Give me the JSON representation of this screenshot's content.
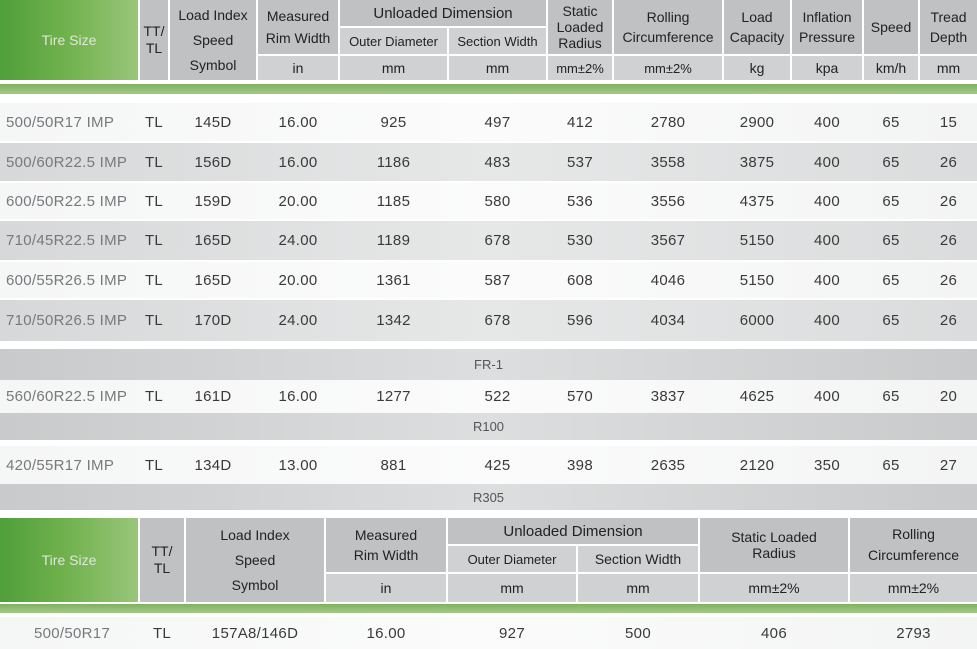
{
  "table1": {
    "headers": {
      "tire_size": "Tire Size",
      "tt_tl": "TT/\nTL",
      "load_index_l1": "Load Index",
      "load_index_l2": "Speed",
      "load_index_l3": "Symbol",
      "measured_l1": "Measured",
      "measured_l2": "Rim Width",
      "measured_unit": "in",
      "unloaded": "Unloaded Dimension",
      "outer_diameter": "Outer Diameter",
      "outer_unit": "mm",
      "section_width": "Section Width",
      "section_unit": "mm",
      "static_l1": "Static",
      "static_l2": "Loaded",
      "static_l3": "Radius",
      "static_unit": "mm±2%",
      "rolling_l1": "Rolling",
      "rolling_l2": "Circumference",
      "rolling_unit": "mm±2%",
      "load_cap_l1": "Load",
      "load_cap_l2": "Capacity",
      "load_cap_unit": "kg",
      "inflation_l1": "Inflation",
      "inflation_l2": "Pressure",
      "inflation_unit": "kpa",
      "speed": "Speed",
      "speed_unit": "km/h",
      "tread_l1": "Tread",
      "tread_l2": "Depth",
      "tread_unit": "mm"
    },
    "rows_a": [
      [
        "500/50R17 IMP",
        "TL",
        "145D",
        "16.00",
        "925",
        "497",
        "412",
        "2780",
        "2900",
        "400",
        "65",
        "15"
      ],
      [
        "500/60R22.5 IMP",
        "TL",
        "156D",
        "16.00",
        "1186",
        "483",
        "537",
        "3558",
        "3875",
        "400",
        "65",
        "26"
      ],
      [
        "600/50R22.5 IMP",
        "TL",
        "159D",
        "20.00",
        "1185",
        "580",
        "536",
        "3556",
        "4375",
        "400",
        "65",
        "26"
      ],
      [
        "710/45R22.5 IMP",
        "TL",
        "165D",
        "24.00",
        "1189",
        "678",
        "530",
        "3567",
        "5150",
        "400",
        "65",
        "26"
      ],
      [
        "600/55R26.5 IMP",
        "TL",
        "165D",
        "20.00",
        "1361",
        "587",
        "608",
        "4046",
        "5150",
        "400",
        "65",
        "26"
      ],
      [
        "710/50R26.5 IMP",
        "TL",
        "170D",
        "24.00",
        "1342",
        "678",
        "596",
        "4034",
        "6000",
        "400",
        "65",
        "26"
      ]
    ],
    "band_fr1": "FR-1",
    "rows_b": [
      [
        "560/60R22.5 IMP",
        "TL",
        "161D",
        "16.00",
        "1277",
        "522",
        "570",
        "3837",
        "4625",
        "400",
        "65",
        "20"
      ]
    ],
    "band_r100": "R100",
    "rows_c": [
      [
        "420/55R17 IMP",
        "TL",
        "134D",
        "13.00",
        "881",
        "425",
        "398",
        "2635",
        "2120",
        "350",
        "65",
        "27"
      ]
    ],
    "band_r305": "R305"
  },
  "table2": {
    "headers": {
      "tire_size": "Tire Size",
      "tt_tl": "TT/\nTL",
      "load_index_l1": "Load Index",
      "load_index_l2": "Speed",
      "load_index_l3": "Symbol",
      "measured_l1": "Measured",
      "measured_l2": "Rim Width",
      "measured_unit": "in",
      "unloaded": "Unloaded Dimension",
      "outer_diameter": "Outer Diameter",
      "outer_unit": "mm",
      "section_width": "Section Width",
      "section_unit": "mm",
      "static_l1": "Static Loaded",
      "static_l2": "Radius",
      "static_unit": "mm±2%",
      "rolling_l1": "Rolling",
      "rolling_l2": "Circumference",
      "rolling_unit": "mm±2%"
    },
    "rows": [
      [
        "500/50R17",
        "TL",
        "157A8/146D",
        "16.00",
        "927",
        "500",
        "406",
        "2793"
      ]
    ]
  }
}
